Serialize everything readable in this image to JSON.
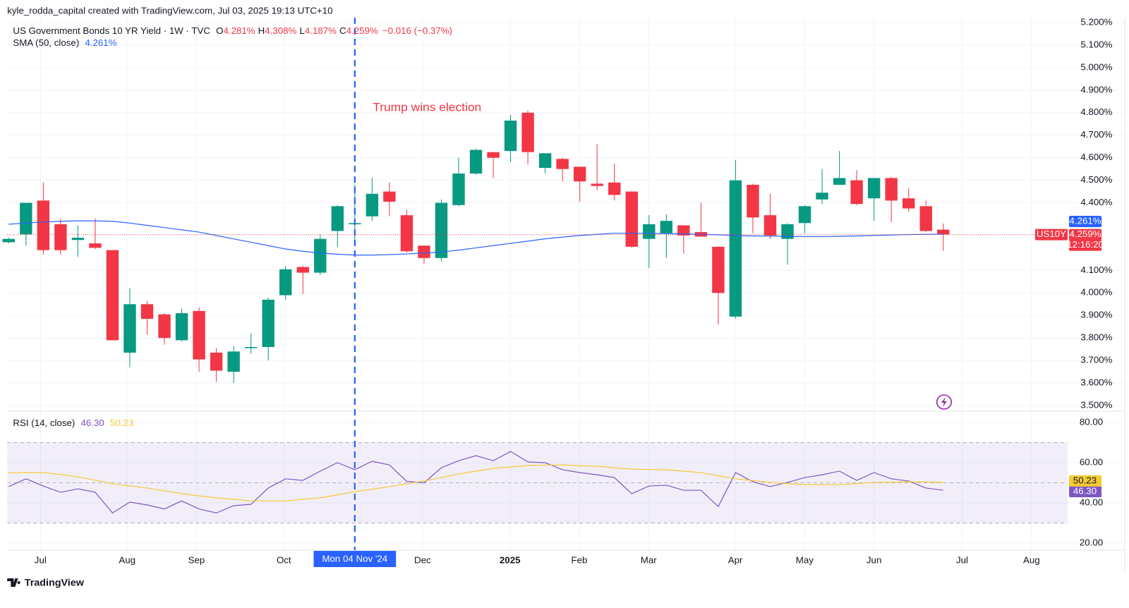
{
  "header": {
    "attribution": "kyle_rodda_capital created with TradingView.com, Jul 03, 2025 19:13 UTC+10",
    "footer": "TradingView"
  },
  "chart_data": [
    {
      "type": "candlestick",
      "title": "US Government Bonds 10 YR Yield · 1W · TVC",
      "symbol": "US10Y",
      "ohlc_keys": [
        "O",
        "H",
        "L",
        "C"
      ],
      "legend_labels": {
        "open": "4.281%",
        "high": "4.308%",
        "low": "4.187%",
        "close": "4.259%"
      },
      "change": "−0.016 (−0.37%)",
      "countdown": "12:16:20",
      "annotation": "Trump wins election",
      "crosshair_label": "Mon 04 Nov '24",
      "crosshair_index": 20,
      "up_color": "#089981",
      "down_color": "#f23645",
      "open": [
        4.225,
        4.26,
        4.41,
        4.305,
        4.235,
        4.22,
        4.19,
        3.735,
        3.95,
        3.905,
        3.79,
        3.92,
        3.735,
        3.65,
        3.755,
        3.76,
        3.99,
        4.115,
        4.09,
        4.275,
        4.305,
        4.34,
        4.45,
        4.345,
        4.21,
        4.155,
        4.39,
        4.53,
        4.625,
        4.63,
        4.8,
        4.555,
        4.595,
        4.56,
        4.485,
        4.49,
        4.45,
        4.24,
        4.265,
        4.3,
        4.27,
        4.205,
        3.895,
        4.48,
        4.345,
        4.24,
        4.31,
        4.415,
        4.48,
        4.5,
        4.42,
        4.51,
        4.42,
        4.385,
        4.281
      ],
      "high": [
        4.245,
        4.4,
        4.49,
        4.33,
        4.3,
        4.33,
        4.19,
        4.02,
        3.965,
        3.91,
        3.93,
        3.935,
        3.755,
        3.765,
        3.82,
        3.98,
        4.12,
        4.12,
        4.26,
        4.39,
        4.48,
        4.51,
        4.49,
        4.37,
        4.21,
        4.415,
        4.6,
        4.64,
        4.625,
        4.79,
        4.81,
        4.62,
        4.6,
        4.56,
        4.66,
        4.575,
        4.45,
        4.345,
        4.35,
        4.3,
        4.4,
        4.205,
        4.59,
        4.485,
        4.44,
        4.31,
        4.39,
        4.55,
        4.63,
        4.545,
        4.51,
        4.515,
        4.465,
        4.41,
        4.308
      ],
      "low": [
        4.22,
        4.21,
        4.17,
        4.17,
        4.16,
        4.195,
        3.79,
        3.67,
        3.815,
        3.77,
        3.785,
        3.65,
        3.605,
        3.6,
        3.73,
        3.7,
        3.97,
        3.995,
        4.08,
        4.205,
        4.21,
        4.32,
        4.34,
        4.18,
        4.13,
        4.14,
        4.385,
        4.525,
        4.51,
        4.58,
        4.57,
        4.53,
        4.495,
        4.405,
        4.455,
        4.41,
        4.2,
        4.11,
        4.155,
        4.175,
        4.25,
        3.86,
        3.885,
        4.265,
        4.24,
        4.125,
        4.265,
        4.395,
        4.48,
        4.39,
        4.32,
        4.315,
        4.36,
        4.27,
        4.187
      ],
      "close": [
        4.24,
        4.4,
        4.19,
        4.19,
        4.245,
        4.2,
        3.79,
        3.95,
        3.885,
        3.8,
        3.91,
        3.705,
        3.655,
        3.74,
        3.76,
        3.97,
        4.105,
        4.09,
        4.24,
        4.385,
        4.31,
        4.44,
        4.405,
        4.185,
        4.155,
        4.4,
        4.53,
        4.635,
        4.6,
        4.765,
        4.625,
        4.62,
        4.55,
        4.495,
        4.475,
        4.435,
        4.205,
        4.305,
        4.32,
        4.255,
        4.25,
        4.0,
        4.5,
        4.335,
        4.255,
        4.305,
        4.385,
        4.445,
        4.51,
        4.395,
        4.51,
        4.41,
        4.375,
        4.275,
        4.259
      ],
      "sma": {
        "name": "SMA (50, close)",
        "color": "#2962ff",
        "last_label": "4.261%",
        "values": [
          4.305,
          4.31,
          4.315,
          4.318,
          4.32,
          4.32,
          4.318,
          4.31,
          4.3,
          4.29,
          4.28,
          4.27,
          4.255,
          4.24,
          4.225,
          4.21,
          4.195,
          4.185,
          4.177,
          4.172,
          4.168,
          4.168,
          4.17,
          4.173,
          4.177,
          4.182,
          4.19,
          4.2,
          4.21,
          4.22,
          4.23,
          4.24,
          4.248,
          4.255,
          4.26,
          4.265,
          4.265,
          4.265,
          4.263,
          4.262,
          4.26,
          4.258,
          4.255,
          4.253,
          4.252,
          4.251,
          4.25,
          4.25,
          4.251,
          4.253,
          4.255,
          4.257,
          4.259,
          4.26,
          4.261
        ]
      },
      "ylim": [
        3.475,
        5.222
      ],
      "yticks": [
        {
          "value": 5.2,
          "label": "5.200%"
        },
        {
          "value": 5.1,
          "label": "5.100%"
        },
        {
          "value": 5.0,
          "label": "5.000%"
        },
        {
          "value": 4.9,
          "label": "4.900%"
        },
        {
          "value": 4.8,
          "label": "4.800%"
        },
        {
          "value": 4.7,
          "label": "4.700%"
        },
        {
          "value": 4.6,
          "label": "4.600%"
        },
        {
          "value": 4.5,
          "label": "4.500%"
        },
        {
          "value": 4.4,
          "label": "4.400%"
        },
        {
          "value": 4.1,
          "label": "4.100%"
        },
        {
          "value": 4.0,
          "label": "4.000%"
        },
        {
          "value": 3.9,
          "label": "3.900%"
        },
        {
          "value": 3.8,
          "label": "3.800%"
        },
        {
          "value": 3.7,
          "label": "3.700%"
        },
        {
          "value": 3.6,
          "label": "3.600%"
        },
        {
          "value": 3.5,
          "label": "3.500%"
        }
      ],
      "xticks": [
        "Jul",
        "Aug",
        "Sep",
        "Oct",
        "Dec",
        "2025",
        "Feb",
        "Mar",
        "Apr",
        "May",
        "Jun",
        "Jul",
        "Aug"
      ],
      "grid": true
    },
    {
      "type": "line",
      "title": "RSI (14, close)",
      "series": [
        {
          "color": "#7e57c2",
          "last_label": "46.30",
          "values": [
            48.1,
            52,
            48.4,
            45.3,
            47,
            45.3,
            35,
            40.4,
            39,
            37,
            41,
            37,
            35,
            38.6,
            39.3,
            47.4,
            52,
            51.2,
            55.8,
            60,
            56.5,
            60.7,
            58.9,
            50.7,
            50,
            57.5,
            61,
            63.5,
            61,
            65.6,
            60.4,
            60,
            56.5,
            55.1,
            54,
            52.6,
            44.6,
            48.4,
            48.8,
            46.3,
            46.3,
            38.2,
            55.1,
            50.5,
            48.1,
            50.2,
            52.6,
            54,
            55.8,
            51.2,
            55.1,
            52,
            50.9,
            47.4,
            46.3
          ]
        },
        {
          "color": "#f5c933",
          "last_label": "50.23",
          "values": [
            55.1,
            55.1,
            55.1,
            54.1,
            53,
            51.3,
            49.5,
            48.5,
            47.4,
            46,
            44.6,
            43.5,
            42.5,
            41.8,
            41,
            41,
            41,
            41.8,
            42.5,
            44,
            45.6,
            46.8,
            48.1,
            49.5,
            50.9,
            52.6,
            54.4,
            55.8,
            57.2,
            57.9,
            58.6,
            58.8,
            58.9,
            58.5,
            58.2,
            57.5,
            56.8,
            56.6,
            56.5,
            55.8,
            55.1,
            53.5,
            52,
            51.1,
            50.2,
            49.6,
            49.1,
            49.1,
            49.1,
            49.6,
            50.2,
            50.3,
            50.5,
            50.4,
            50.23
          ]
        }
      ],
      "bands": [
        30,
        70
      ],
      "midline": 50,
      "ylim": [
        16.5,
        85.26
      ],
      "yticks": [
        {
          "value": 80,
          "label": "80.00"
        },
        {
          "value": 60,
          "label": "60.00"
        },
        {
          "value": 40,
          "label": "40.00"
        },
        {
          "value": 20,
          "label": "20.00"
        }
      ]
    }
  ]
}
